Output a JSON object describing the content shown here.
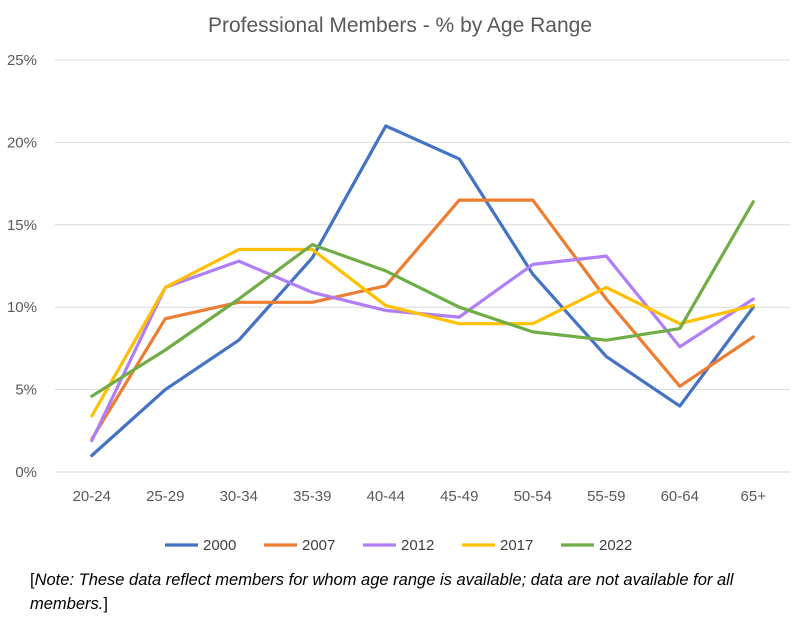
{
  "chart_data": {
    "type": "line",
    "title": "Professional Members - % by Age Range",
    "categories": [
      "20-24",
      "25-29",
      "30-34",
      "35-39",
      "40-44",
      "45-49",
      "50-54",
      "55-59",
      "60-64",
      "65+"
    ],
    "yticks": [
      "0%",
      "5%",
      "10%",
      "15%",
      "20%",
      "25%"
    ],
    "ylim": [
      0,
      25
    ],
    "grid": true,
    "legend_position": "bottom",
    "series": [
      {
        "name": "2000",
        "color": "#4472C4",
        "values": [
          1,
          5,
          8,
          13,
          21,
          19,
          12,
          7,
          4,
          10
        ]
      },
      {
        "name": "2007",
        "color": "#ED7D31",
        "values": [
          2,
          9.3,
          10.3,
          10.3,
          11.3,
          16.5,
          16.5,
          10.5,
          5.2,
          8.2
        ]
      },
      {
        "name": "2012",
        "color": "#B07EF8",
        "values": [
          1.9,
          11.2,
          12.8,
          10.9,
          9.8,
          9.4,
          12.6,
          13.1,
          7.6,
          10.5
        ]
      },
      {
        "name": "2017",
        "color": "#FFC000",
        "values": [
          3.4,
          11.2,
          13.5,
          13.5,
          10.1,
          9,
          9,
          11.2,
          9,
          10.1
        ]
      },
      {
        "name": "2022",
        "color": "#70AD47",
        "values": [
          4.6,
          7.4,
          10.5,
          13.8,
          12.2,
          10,
          8.5,
          8,
          8.7,
          16.4
        ]
      }
    ]
  },
  "note": {
    "open": "[",
    "body": "Note: These data reflect members for whom age range is available; data are not available for all members.",
    "close": "]"
  }
}
